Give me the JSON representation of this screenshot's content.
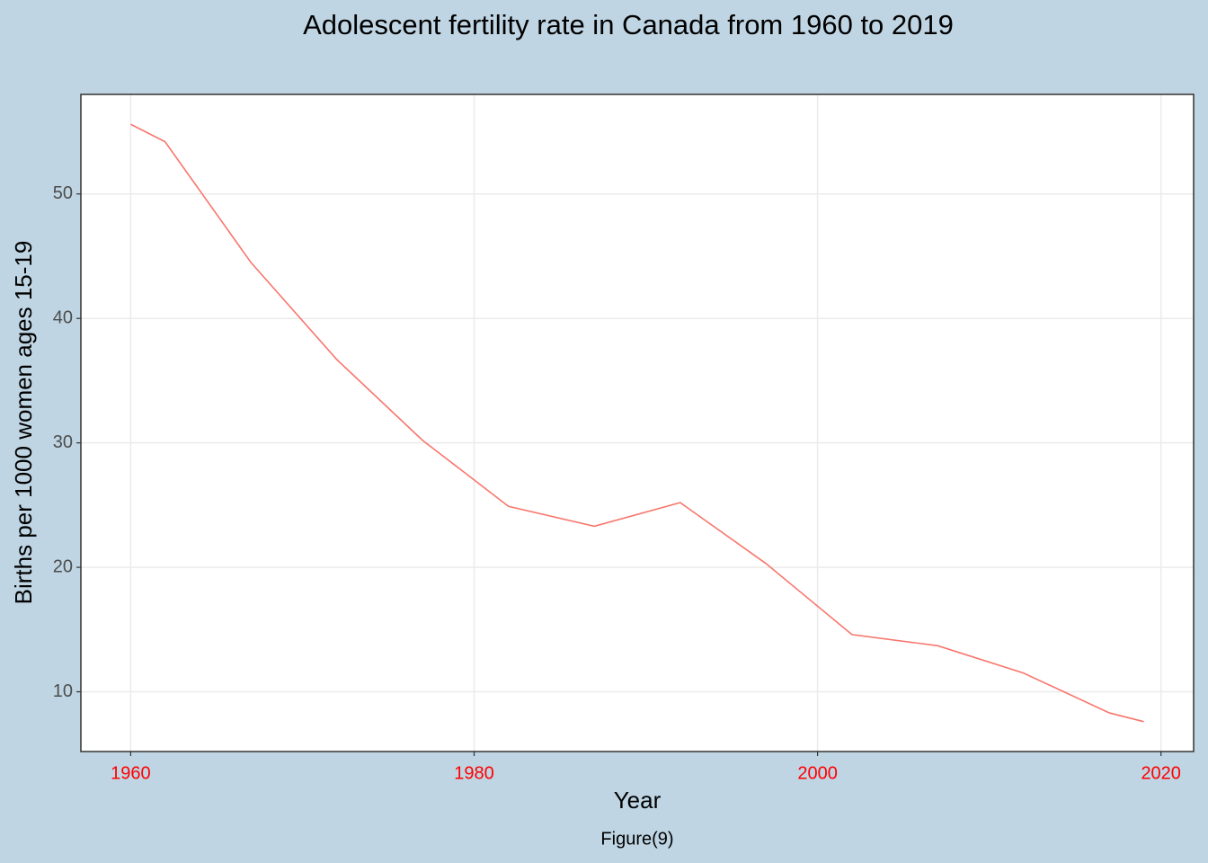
{
  "chart_data": {
    "type": "line",
    "title": "Adolescent fertility rate in Canada from 1960 to 2019",
    "x_label": "Year",
    "y_label": "Births per 1000 women ages 15-19",
    "caption": "Figure(9)",
    "x": [
      1960,
      1962,
      1967,
      1972,
      1977,
      1982,
      1987,
      1992,
      1997,
      2002,
      2007,
      2012,
      2017,
      2019
    ],
    "series": [
      {
        "name": "Canada",
        "color": "#f8766d",
        "values": [
          55.6,
          54.2,
          44.5,
          36.7,
          30.2,
          24.9,
          23.3,
          25.2,
          20.3,
          14.6,
          13.7,
          11.5,
          8.3,
          7.6
        ]
      }
    ],
    "xlim": [
      1957.1,
      2021.9
    ],
    "ylim": [
      5.2,
      58.0
    ],
    "xticks": [
      1960,
      1980,
      2000,
      2020
    ],
    "yticks": [
      10,
      20,
      30,
      40,
      50
    ],
    "xtick_color": "#ff0000",
    "grid": true,
    "legend": false
  }
}
